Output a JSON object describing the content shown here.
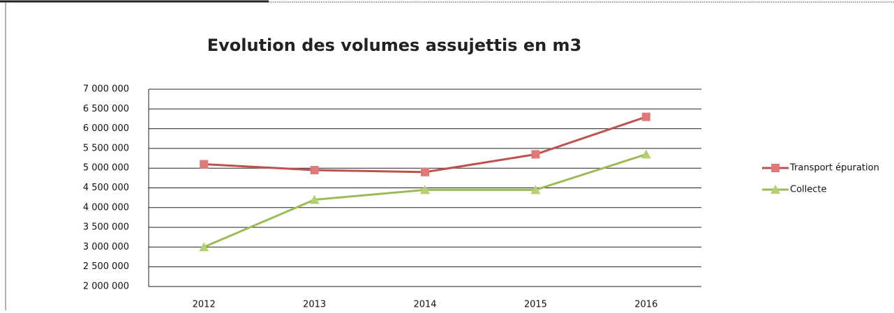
{
  "chart_data": {
    "type": "line",
    "title": "Evolution des volumes assujettis en m3",
    "categories": [
      "2012",
      "2013",
      "2014",
      "2015",
      "2016"
    ],
    "series": [
      {
        "name": "Transport épuration",
        "color": "#c0504d",
        "marker": "square",
        "marker_color": "#e07a78",
        "values": [
          5100000,
          4950000,
          4900000,
          5350000,
          6300000
        ]
      },
      {
        "name": "Collecte",
        "color": "#9bbb59",
        "marker": "triangle",
        "marker_color": "#b5cf72",
        "values": [
          3000000,
          4200000,
          4450000,
          4450000,
          5350000
        ]
      }
    ],
    "ylim": [
      2000000,
      7000000
    ],
    "yticks": [
      {
        "value": 2000000,
        "label": "2 000 000"
      },
      {
        "value": 2500000,
        "label": "2 500 000"
      },
      {
        "value": 3000000,
        "label": "3 000 000"
      },
      {
        "value": 3500000,
        "label": "3 500 000"
      },
      {
        "value": 4000000,
        "label": "4 000 000"
      },
      {
        "value": 4500000,
        "label": "4 500 000"
      },
      {
        "value": 5000000,
        "label": "5 000 000"
      },
      {
        "value": 5500000,
        "label": "5 500 000"
      },
      {
        "value": 6000000,
        "label": "6 000 000"
      },
      {
        "value": 6500000,
        "label": "6 500 000"
      },
      {
        "value": 7000000,
        "label": "7 000 000"
      }
    ],
    "grid": true,
    "legend": "right"
  }
}
